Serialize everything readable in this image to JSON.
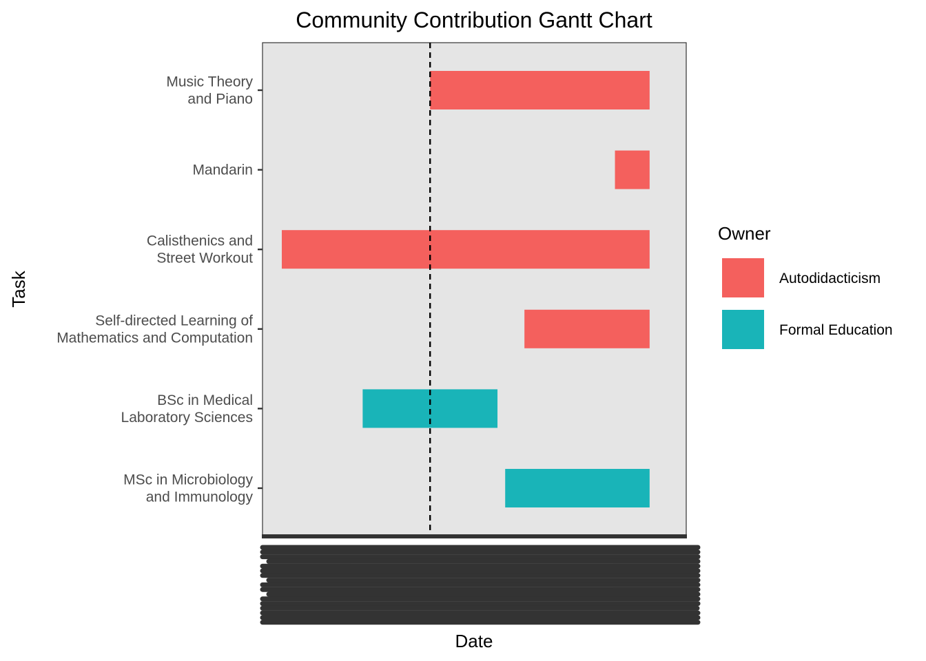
{
  "chart_data": {
    "type": "gantt",
    "title": "Community Contribution Gantt Chart",
    "xlabel": "Date",
    "ylabel": "Task",
    "xlim": [
      0,
      100
    ],
    "reference_line_x": 38.5,
    "reference_line_style": "dashed",
    "grid": false,
    "x_tick_labels_legible": false,
    "legend_position": "right",
    "legend_title": "Owner",
    "owners": [
      {
        "name": "Autodidacticism",
        "color": "#F4605D"
      },
      {
        "name": "Formal Education",
        "color": "#19B4B8"
      }
    ],
    "tasks": [
      {
        "label_lines": [
          "Music Theory",
          "and Piano"
        ],
        "owner": "Autodidacticism",
        "start": 38.5,
        "end": 95.5
      },
      {
        "label_lines": [
          "Mandarin"
        ],
        "owner": "Autodidacticism",
        "start": 86.5,
        "end": 95.5
      },
      {
        "label_lines": [
          "Calisthenics and",
          "Street Workout"
        ],
        "owner": "Autodidacticism",
        "start": 0,
        "end": 95.5
      },
      {
        "label_lines": [
          "Self-directed Learning of",
          "Mathematics and Computation"
        ],
        "owner": "Autodidacticism",
        "start": 63,
        "end": 95.5
      },
      {
        "label_lines": [
          "BSc in Medical",
          "Laboratory Sciences"
        ],
        "owner": "Formal Education",
        "start": 21,
        "end": 56
      },
      {
        "label_lines": [
          "MSc in Microbiology",
          "and Immunology"
        ],
        "owner": "Formal Education",
        "start": 58,
        "end": 95.5
      }
    ],
    "panel_background": "#E5E5E5"
  }
}
